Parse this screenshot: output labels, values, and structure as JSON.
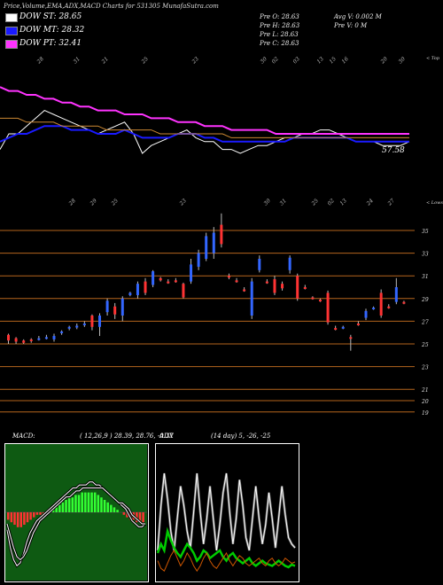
{
  "header": "Price,Volume,EMA,ADX,MACD Charts for 531305 MunafaSutra.com",
  "legend": [
    {
      "label": "DOW ST: 28.65",
      "color": "#ffffff"
    },
    {
      "label": "DOW MT: 28.32",
      "color": "#1a1aff"
    },
    {
      "label": "DOW PT: 32.41",
      "color": "#ff33ff"
    }
  ],
  "stats": {
    "open": "Pre O: 28.63",
    "high": "Pre H: 28.63",
    "low": "Pre L: 28.63",
    "close": "Pre C: 28.63",
    "avgv": "Avg V: 0.002 M",
    "prev": "Pre V: 0 M"
  },
  "chart_data": [
    {
      "type": "line",
      "label_right": "57.58",
      "corner": "< Top",
      "date_labels": [
        "28",
        "31",
        "21",
        "25",
        "23",
        "30",
        "02",
        "03",
        "13",
        "15",
        "16",
        "20",
        "30"
      ],
      "series": [
        {
          "color": "#ffffff",
          "values": [
            56,
            60,
            60,
            62,
            64,
            66,
            65,
            64,
            63,
            62,
            61,
            60,
            61,
            62,
            63,
            60,
            55,
            57,
            58,
            59,
            60,
            61,
            59,
            58,
            58,
            56,
            56,
            55,
            56,
            57,
            57,
            58,
            59,
            59,
            60,
            60,
            61,
            61,
            60,
            59,
            58,
            58,
            58,
            57,
            57,
            57,
            58
          ]
        },
        {
          "color": "#1a1aff",
          "values": [
            58,
            59,
            60,
            60,
            61,
            62,
            62,
            62,
            61,
            61,
            61,
            60,
            60,
            60,
            61,
            60,
            59,
            59,
            59,
            59,
            60,
            60,
            60,
            59,
            59,
            58,
            58,
            58,
            58,
            58,
            58,
            58,
            58,
            59,
            59,
            59,
            59,
            59,
            59,
            59,
            58,
            58,
            58,
            58,
            58,
            58,
            58
          ]
        },
        {
          "color": "#ff33ff",
          "values": [
            72,
            71,
            71,
            70,
            70,
            69,
            69,
            68,
            68,
            67,
            67,
            66,
            66,
            66,
            65,
            65,
            65,
            64,
            64,
            64,
            63,
            63,
            63,
            62,
            62,
            62,
            61,
            61,
            61,
            61,
            61,
            60,
            60,
            60,
            60,
            60,
            60,
            60,
            60,
            60,
            60,
            60,
            60,
            60,
            60,
            60,
            60
          ]
        },
        {
          "color": "#cc8833",
          "values": [
            64,
            64,
            64,
            63,
            63,
            63,
            63,
            62,
            62,
            62,
            62,
            62,
            61,
            61,
            61,
            61,
            61,
            61,
            60,
            60,
            60,
            60,
            60,
            60,
            60,
            60,
            59,
            59,
            59,
            59,
            59,
            59,
            59,
            59,
            59,
            59,
            59,
            59,
            59,
            59,
            59,
            59,
            59,
            59,
            59,
            59,
            59
          ]
        }
      ]
    },
    {
      "type": "candlestick",
      "corner": "< Lows",
      "date_labels": [
        "28",
        "29",
        "25",
        "23",
        "30",
        "31",
        "25",
        "02",
        "13",
        "24",
        "27"
      ],
      "ylevels": [
        35,
        33,
        31,
        29,
        27,
        25,
        23,
        21,
        20,
        19
      ],
      "ylabels": [
        "35",
        "33",
        "31",
        "29",
        "27",
        "25",
        "23",
        "21",
        "20",
        "19"
      ],
      "candles": [
        {
          "o": 25.8,
          "c": 25.3,
          "h": 25.9,
          "l": 25.0
        },
        {
          "o": 25.5,
          "c": 25.2,
          "h": 25.6,
          "l": 25.0
        },
        {
          "o": 25.3,
          "c": 25.1,
          "h": 25.4,
          "l": 25.0
        },
        {
          "o": 25.4,
          "c": 25.3,
          "h": 25.5,
          "l": 25.1
        },
        {
          "o": 25.5,
          "c": 25.5,
          "h": 25.7,
          "l": 25.3
        },
        {
          "o": 25.6,
          "c": 25.6,
          "h": 25.8,
          "l": 25.4
        },
        {
          "o": 25.4,
          "c": 25.7,
          "h": 25.9,
          "l": 25.2
        },
        {
          "o": 26.0,
          "c": 26.1,
          "h": 26.2,
          "l": 25.8
        },
        {
          "o": 26.4,
          "c": 26.5,
          "h": 26.6,
          "l": 26.2
        },
        {
          "o": 26.5,
          "c": 26.6,
          "h": 26.8,
          "l": 26.3
        },
        {
          "o": 26.7,
          "c": 26.8,
          "h": 27.0,
          "l": 26.5
        },
        {
          "o": 27.5,
          "c": 26.5,
          "h": 27.6,
          "l": 26.2
        },
        {
          "o": 26.5,
          "c": 27.5,
          "h": 27.7,
          "l": 25.7
        },
        {
          "o": 27.8,
          "c": 28.8,
          "h": 29.0,
          "l": 27.5
        },
        {
          "o": 28.3,
          "c": 27.6,
          "h": 28.6,
          "l": 27.2
        },
        {
          "o": 27.5,
          "c": 29.0,
          "h": 29.2,
          "l": 27.0
        },
        {
          "o": 29.3,
          "c": 29.5,
          "h": 29.6,
          "l": 29.2
        },
        {
          "o": 29.3,
          "c": 30.3,
          "h": 30.5,
          "l": 29.0
        },
        {
          "o": 30.5,
          "c": 29.5,
          "h": 30.8,
          "l": 29.3
        },
        {
          "o": 30.2,
          "c": 31.4,
          "h": 31.5,
          "l": 30.0
        },
        {
          "o": 30.8,
          "c": 30.6,
          "h": 30.9,
          "l": 30.5
        },
        {
          "o": 30.5,
          "c": 30.4,
          "h": 30.7,
          "l": 30.3
        },
        {
          "o": 30.6,
          "c": 30.5,
          "h": 30.8,
          "l": 30.4
        },
        {
          "o": 30.3,
          "c": 29.1,
          "h": 30.4,
          "l": 29.0
        },
        {
          "o": 30.5,
          "c": 32.0,
          "h": 32.5,
          "l": 30.3
        },
        {
          "o": 31.8,
          "c": 33.0,
          "h": 33.3,
          "l": 31.5
        },
        {
          "o": 32.5,
          "c": 34.5,
          "h": 34.8,
          "l": 32.3
        },
        {
          "o": 33.0,
          "c": 34.8,
          "h": 35.3,
          "l": 32.5
        },
        {
          "o": 35.5,
          "c": 33.8,
          "h": 36.5,
          "l": 33.5
        },
        {
          "o": 31.0,
          "c": 30.9,
          "h": 31.2,
          "l": 30.7
        },
        {
          "o": 30.6,
          "c": 30.5,
          "h": 30.8,
          "l": 30.4
        },
        {
          "o": 29.8,
          "c": 29.7,
          "h": 30.0,
          "l": 29.6
        },
        {
          "o": 27.5,
          "c": 30.5,
          "h": 30.8,
          "l": 27.2
        },
        {
          "o": 31.5,
          "c": 32.5,
          "h": 32.8,
          "l": 31.3
        },
        {
          "o": 30.5,
          "c": 30.4,
          "h": 30.7,
          "l": 30.3
        },
        {
          "o": 30.7,
          "c": 29.5,
          "h": 31.0,
          "l": 29.3
        },
        {
          "o": 30.3,
          "c": 29.9,
          "h": 30.5,
          "l": 29.7
        },
        {
          "o": 31.5,
          "c": 32.6,
          "h": 32.8,
          "l": 31.2
        },
        {
          "o": 31.0,
          "c": 29.0,
          "h": 31.2,
          "l": 28.8
        },
        {
          "o": 30.0,
          "c": 29.9,
          "h": 30.2,
          "l": 29.8
        },
        {
          "o": 29.1,
          "c": 29.0,
          "h": 29.2,
          "l": 28.9
        },
        {
          "o": 28.9,
          "c": 28.8,
          "h": 29.0,
          "l": 28.7
        },
        {
          "o": 29.5,
          "c": 26.9,
          "h": 29.7,
          "l": 26.7
        },
        {
          "o": 26.4,
          "c": 26.3,
          "h": 26.6,
          "l": 26.2
        },
        {
          "o": 26.4,
          "c": 26.5,
          "h": 26.6,
          "l": 26.3
        },
        {
          "o": 25.6,
          "c": 25.5,
          "h": 25.8,
          "l": 24.4
        },
        {
          "o": 26.8,
          "c": 26.7,
          "h": 27.0,
          "l": 26.6
        },
        {
          "o": 27.3,
          "c": 27.9,
          "h": 28.1,
          "l": 27.1
        },
        {
          "o": 28.1,
          "c": 28.2,
          "h": 28.3,
          "l": 28.0
        },
        {
          "o": 29.5,
          "c": 27.5,
          "h": 29.8,
          "l": 27.3
        },
        {
          "o": 28.3,
          "c": 28.2,
          "h": 28.5,
          "l": 28.1
        },
        {
          "o": 28.7,
          "c": 30.0,
          "h": 30.8,
          "l": 28.5
        },
        {
          "o": 28.7,
          "c": 28.6,
          "h": 28.8,
          "l": 28.5
        }
      ]
    },
    {
      "type": "bar",
      "title": "MACD:",
      "params": "( 12,26,9 ) 28.39, 28.76, -0.37",
      "histogram": [
        -3,
        -4,
        -5,
        -6,
        -6,
        -5,
        -4,
        -3,
        -2,
        -1,
        -1,
        -1,
        0,
        1,
        1,
        2,
        3,
        4,
        5,
        6,
        6,
        7,
        7,
        8,
        8,
        8,
        8,
        8,
        7,
        6,
        5,
        4,
        3,
        2,
        1,
        0,
        -1,
        -2,
        -3,
        -3,
        -4,
        -4,
        -4
      ],
      "series": [
        {
          "color": "#ffffff",
          "values": [
            -6,
            -12,
            -16,
            -18,
            -17,
            -14,
            -10,
            -7,
            -5,
            -3,
            -2,
            -1,
            0,
            1,
            2,
            3,
            4,
            5,
            6,
            7,
            8,
            8,
            9,
            9,
            9,
            10,
            10,
            9,
            9,
            8,
            7,
            6,
            5,
            4,
            3,
            2,
            1,
            -1,
            -3,
            -4,
            -5,
            -5,
            -4
          ]
        },
        {
          "color": "#ffffff",
          "values": [
            -4,
            -8,
            -12,
            -15,
            -16,
            -15,
            -13,
            -10,
            -7,
            -5,
            -3,
            -2,
            -1,
            0,
            1,
            2,
            3,
            4,
            5,
            5,
            6,
            7,
            7,
            8,
            8,
            8,
            8,
            8,
            8,
            8,
            7,
            6,
            5,
            4,
            3,
            3,
            2,
            1,
            -1,
            -2,
            -3,
            -4,
            -4
          ]
        }
      ]
    },
    {
      "type": "line",
      "title": "ADX",
      "params": "(14 day) 5, -26, -25",
      "series": [
        {
          "color": "#ffffff",
          "values": [
            20,
            55,
            80,
            60,
            35,
            20,
            45,
            70,
            55,
            35,
            22,
            50,
            80,
            50,
            25,
            45,
            70,
            45,
            20,
            40,
            65,
            80,
            50,
            25,
            45,
            75,
            55,
            30,
            20,
            45,
            70,
            45,
            25,
            40,
            65,
            45,
            22,
            45,
            70,
            48,
            30,
            25,
            22
          ]
        },
        {
          "color": "#00cc00",
          "values": [
            18,
            25,
            20,
            35,
            28,
            22,
            18,
            15,
            20,
            25,
            22,
            18,
            12,
            15,
            20,
            18,
            14,
            16,
            18,
            20,
            15,
            12,
            16,
            18,
            14,
            12,
            10,
            12,
            14,
            10,
            8,
            10,
            12,
            10,
            9,
            8,
            10,
            12,
            10,
            8,
            7,
            9,
            8
          ]
        },
        {
          "color": "#cc5500",
          "values": [
            12,
            6,
            4,
            10,
            16,
            20,
            14,
            8,
            12,
            18,
            14,
            8,
            4,
            8,
            14,
            18,
            12,
            8,
            6,
            10,
            14,
            18,
            12,
            8,
            12,
            16,
            14,
            10,
            8,
            10,
            12,
            14,
            10,
            8,
            12,
            14,
            10,
            8,
            10,
            14,
            12,
            10,
            11
          ]
        }
      ]
    }
  ]
}
